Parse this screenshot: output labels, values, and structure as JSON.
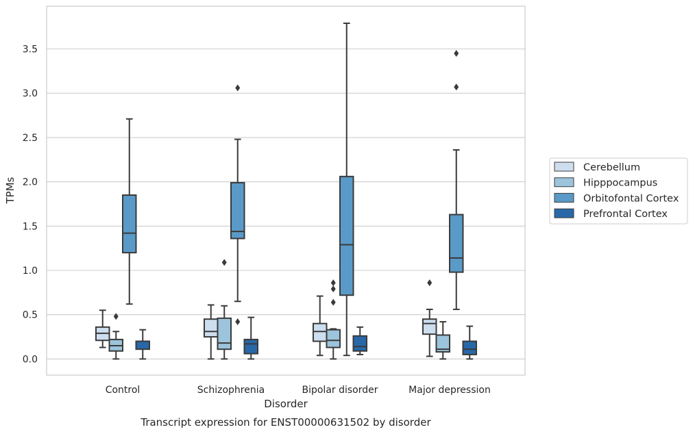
{
  "chart_data": {
    "type": "boxplot",
    "title": "",
    "caption": "Transcript expression for ENST00000631502 by disorder",
    "xlabel": "Disorder",
    "ylabel": "TPMs",
    "ylim": [
      -0.18,
      3.97
    ],
    "yticks": [
      0.0,
      0.5,
      1.0,
      1.5,
      2.0,
      2.5,
      3.0,
      3.5
    ],
    "ytick_labels": [
      "0.0",
      "0.5",
      "1.0",
      "1.5",
      "2.0",
      "2.5",
      "3.0",
      "3.5"
    ],
    "categories": [
      "Control",
      "Schizophrenia",
      "Bipolar disorder",
      "Major depression"
    ],
    "grid": "horizontal",
    "legend_position": "right",
    "series": [
      {
        "name": "Cerebellum",
        "color": "#cddeef",
        "boxes": [
          {
            "whislo": 0.13,
            "q1": 0.21,
            "med": 0.29,
            "q3": 0.36,
            "whishi": 0.55,
            "fliers": []
          },
          {
            "whislo": 0.0,
            "q1": 0.25,
            "med": 0.31,
            "q3": 0.45,
            "whishi": 0.61,
            "fliers": []
          },
          {
            "whislo": 0.04,
            "q1": 0.2,
            "med": 0.31,
            "q3": 0.4,
            "whishi": 0.71,
            "fliers": []
          },
          {
            "whislo": 0.03,
            "q1": 0.28,
            "med": 0.4,
            "q3": 0.45,
            "whishi": 0.56,
            "fliers": [
              0.86
            ]
          }
        ]
      },
      {
        "name": "Hipppocampus",
        "color": "#9cc4dc",
        "boxes": [
          {
            "whislo": 0.0,
            "q1": 0.09,
            "med": 0.15,
            "q3": 0.22,
            "whishi": 0.31,
            "fliers": [
              0.48
            ]
          },
          {
            "whislo": 0.0,
            "q1": 0.11,
            "med": 0.18,
            "q3": 0.46,
            "whishi": 0.6,
            "fliers": [
              1.09
            ]
          },
          {
            "whislo": 0.0,
            "q1": 0.13,
            "med": 0.21,
            "q3": 0.33,
            "whishi": 0.34,
            "fliers": [
              0.64,
              0.79,
              0.86
            ]
          },
          {
            "whislo": 0.0,
            "q1": 0.08,
            "med": 0.11,
            "q3": 0.27,
            "whishi": 0.42,
            "fliers": []
          }
        ]
      },
      {
        "name": "Orbitofontal Cortex",
        "color": "#5a9ac8",
        "boxes": [
          {
            "whislo": 0.62,
            "q1": 1.2,
            "med": 1.42,
            "q3": 1.85,
            "whishi": 2.71,
            "fliers": []
          },
          {
            "whislo": 0.65,
            "q1": 1.36,
            "med": 1.44,
            "q3": 1.99,
            "whishi": 2.48,
            "fliers": [
              0.42,
              3.06
            ]
          },
          {
            "whislo": 0.04,
            "q1": 0.72,
            "med": 1.29,
            "q3": 2.06,
            "whishi": 3.79,
            "fliers": []
          },
          {
            "whislo": 0.56,
            "q1": 0.98,
            "med": 1.14,
            "q3": 1.63,
            "whishi": 2.36,
            "fliers": [
              3.07,
              3.45
            ]
          }
        ]
      },
      {
        "name": "Prefrontal Cortex",
        "color": "#2868a8",
        "boxes": [
          {
            "whislo": 0.0,
            "q1": 0.11,
            "med": 0.2,
            "q3": 0.2,
            "whishi": 0.33,
            "fliers": []
          },
          {
            "whislo": 0.0,
            "q1": 0.06,
            "med": 0.17,
            "q3": 0.22,
            "whishi": 0.47,
            "fliers": []
          },
          {
            "whislo": 0.05,
            "q1": 0.09,
            "med": 0.14,
            "q3": 0.26,
            "whishi": 0.36,
            "fliers": []
          },
          {
            "whislo": 0.0,
            "q1": 0.05,
            "med": 0.11,
            "q3": 0.2,
            "whishi": 0.37,
            "fliers": []
          }
        ]
      }
    ]
  }
}
